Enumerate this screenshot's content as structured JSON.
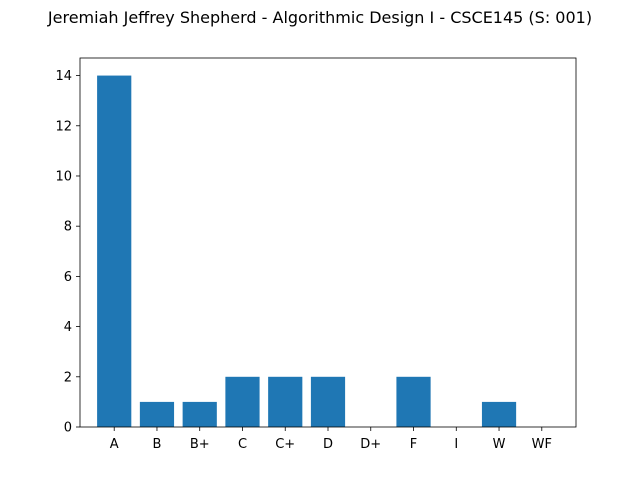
{
  "chart_data": {
    "type": "bar",
    "title": "Jeremiah Jeffrey Shepherd - Algorithmic Design I - CSCE145 (S: 001)",
    "xlabel": "",
    "ylabel": "",
    "categories": [
      "A",
      "B",
      "B+",
      "C",
      "C+",
      "D",
      "D+",
      "F",
      "I",
      "W",
      "WF"
    ],
    "values": [
      14,
      1,
      1,
      2,
      2,
      2,
      0,
      2,
      0,
      1,
      0
    ],
    "ylim": [
      0,
      14.7
    ],
    "yticks": [
      0,
      2,
      4,
      6,
      8,
      10,
      12,
      14
    ],
    "grid": false,
    "bar_color": "#1f77b4"
  }
}
